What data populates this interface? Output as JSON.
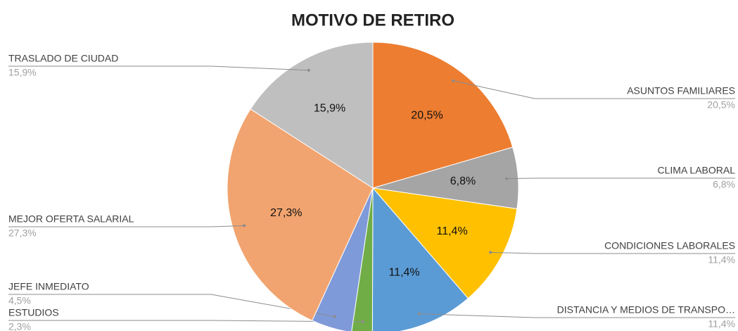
{
  "chart_data": {
    "type": "pie",
    "title": "MOTIVO DE RETIRO",
    "categories": [
      "ASUNTOS FAMILIARES",
      "CLIMA LABORAL",
      "CONDICIONES LABORALES",
      "DISTANCIA Y MEDIOS DE TRANSPO…",
      "ESTUDIOS",
      "JEFE INMEDIATO",
      "MEJOR OFERTA SALARIAL",
      "TRASLADO DE CIUDAD"
    ],
    "values": [
      20.5,
      6.8,
      11.4,
      11.4,
      2.3,
      4.5,
      27.3,
      15.9
    ],
    "value_labels": [
      "20,5%",
      "6,8%",
      "11,4%",
      "11,4%",
      "2,3%",
      "4,5%",
      "27,3%",
      "15,9%"
    ],
    "colors": [
      "#ed7d31",
      "#a5a5a5",
      "#ffc000",
      "#5b9bd5",
      "#70ad47",
      "#7f9ad8",
      "#f1a46f",
      "#bfbfbf"
    ]
  }
}
